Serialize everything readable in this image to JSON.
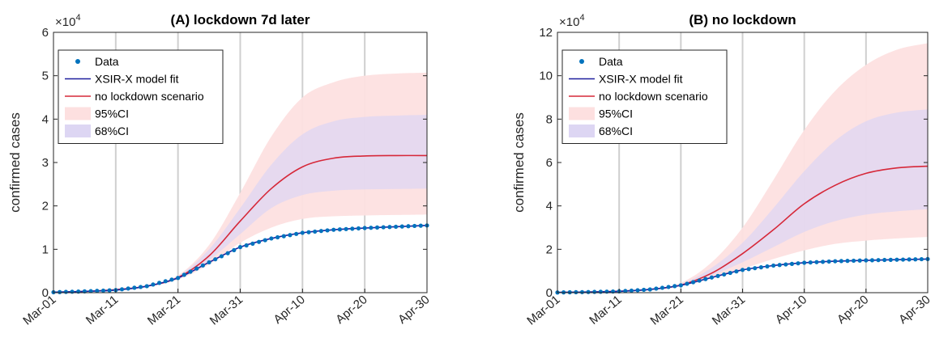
{
  "chart_data": [
    {
      "type": "line",
      "title": "(A) lockdown 7d later",
      "ylabel": "confirmed cases",
      "xlabel": "",
      "exponent_label": "×10",
      "exponent_power": "4",
      "ylim": [
        0,
        60000
      ],
      "yticks": [
        0,
        10000,
        20000,
        30000,
        40000,
        50000,
        60000
      ],
      "ytick_labels": [
        "0",
        "1",
        "2",
        "3",
        "4",
        "5",
        "6"
      ],
      "xlim": [
        "2020-03-01",
        "2020-04-30"
      ],
      "xticks": [
        "2020-03-01",
        "2020-03-11",
        "2020-03-21",
        "2020-03-31",
        "2020-04-10",
        "2020-04-20",
        "2020-04-30"
      ],
      "xtick_labels": [
        "Mar-01",
        "Mar-11",
        "Mar-21",
        "Mar-31",
        "Apr-10",
        "Apr-20",
        "Apr-30"
      ],
      "grid": "vertical",
      "legend_position": "top-left",
      "legend": [
        "Data",
        "XSIR-X model fit",
        "no lockdown scenario",
        "95%CI",
        "68%CI"
      ],
      "colors": {
        "data": "#0072BD",
        "fit": "#1f1f9e",
        "scenario": "#d62839",
        "ci95": "#fde0e0",
        "ci68": "#ddd6f3"
      },
      "x": [
        "2020-03-01",
        "2020-03-06",
        "2020-03-11",
        "2020-03-16",
        "2020-03-21",
        "2020-03-26",
        "2020-03-31",
        "2020-04-05",
        "2020-04-10",
        "2020-04-15",
        "2020-04-20",
        "2020-04-25",
        "2020-04-30"
      ],
      "series": [
        {
          "name": "Data",
          "values": [
            100,
            300,
            600,
            1500,
            3400,
            7000,
            10500,
            12500,
            13800,
            14500,
            14900,
            15200,
            15500
          ]
        },
        {
          "name": "XSIR-X model fit",
          "values": [
            100,
            300,
            600,
            1500,
            3400,
            7000,
            10500,
            12500,
            13800,
            14500,
            14900,
            15200,
            15500
          ]
        },
        {
          "name": "no lockdown scenario",
          "values": [
            100,
            300,
            700,
            1500,
            3500,
            8500,
            16500,
            24000,
            29000,
            31000,
            31500,
            31600,
            31600
          ]
        }
      ],
      "bands": [
        {
          "name": "95%CI",
          "lower": [
            100,
            300,
            600,
            1400,
            3000,
            6500,
            11500,
            15000,
            17000,
            17600,
            17800,
            17900,
            18000
          ],
          "upper": [
            100,
            300,
            800,
            1700,
            4000,
            11000,
            23000,
            36000,
            45000,
            48500,
            50000,
            50500,
            50700
          ]
        },
        {
          "name": "68%CI",
          "lower": [
            100,
            300,
            650,
            1450,
            3200,
            7500,
            13500,
            19500,
            22500,
            23500,
            23800,
            23900,
            24000
          ],
          "upper": [
            100,
            300,
            750,
            1600,
            3800,
            10000,
            19500,
            29500,
            36500,
            39500,
            40500,
            40800,
            41000
          ]
        }
      ]
    },
    {
      "type": "line",
      "title": "(B) no lockdown",
      "ylabel": "confirmed cases",
      "xlabel": "",
      "exponent_label": "×10",
      "exponent_power": "4",
      "ylim": [
        0,
        120000
      ],
      "yticks": [
        0,
        20000,
        40000,
        60000,
        80000,
        100000,
        120000
      ],
      "ytick_labels": [
        "0",
        "2",
        "4",
        "6",
        "8",
        "10",
        "12"
      ],
      "xlim": [
        "2020-03-01",
        "2020-04-30"
      ],
      "xticks": [
        "2020-03-01",
        "2020-03-11",
        "2020-03-21",
        "2020-03-31",
        "2020-04-10",
        "2020-04-20",
        "2020-04-30"
      ],
      "xtick_labels": [
        "Mar-01",
        "Mar-11",
        "Mar-21",
        "Mar-31",
        "Apr-10",
        "Apr-20",
        "Apr-30"
      ],
      "grid": "vertical",
      "legend_position": "top-left",
      "legend": [
        "Data",
        "XSIR-X model fit",
        "no lockdown scenario",
        "95%CI",
        "68%CI"
      ],
      "colors": {
        "data": "#0072BD",
        "fit": "#1f1f9e",
        "scenario": "#d62839",
        "ci95": "#fde0e0",
        "ci68": "#ddd6f3"
      },
      "x": [
        "2020-03-01",
        "2020-03-06",
        "2020-03-11",
        "2020-03-16",
        "2020-03-21",
        "2020-03-26",
        "2020-03-31",
        "2020-04-05",
        "2020-04-10",
        "2020-04-15",
        "2020-04-20",
        "2020-04-25",
        "2020-04-30"
      ],
      "series": [
        {
          "name": "Data",
          "values": [
            100,
            300,
            600,
            1500,
            3400,
            7000,
            10500,
            12500,
            13800,
            14500,
            14900,
            15200,
            15500
          ]
        },
        {
          "name": "XSIR-X model fit",
          "values": [
            100,
            300,
            600,
            1500,
            3400,
            7000,
            10500,
            12500,
            13800,
            14500,
            14900,
            15200,
            15500
          ]
        },
        {
          "name": "no lockdown scenario",
          "values": [
            100,
            300,
            700,
            1500,
            3500,
            9000,
            18000,
            29000,
            41000,
            49500,
            55000,
            57500,
            58300
          ]
        }
      ],
      "bands": [
        {
          "name": "95%CI",
          "lower": [
            100,
            300,
            600,
            1400,
            3000,
            6500,
            11000,
            15500,
            19500,
            22500,
            24000,
            25000,
            25700
          ]
        },
        {
          "name": "68%CI",
          "lower": [
            100,
            300,
            650,
            1450,
            3200,
            8000,
            14000,
            21000,
            28000,
            33000,
            36000,
            37500,
            38500
          ]
        }
      ],
      "band_uppers": [
        [
          100,
          300,
          800,
          1800,
          4500,
          14000,
          30000,
          52000,
          75000,
          93000,
          105000,
          112000,
          115000
        ],
        [
          100,
          300,
          750,
          1650,
          4000,
          11500,
          23000,
          39000,
          56000,
          70000,
          79000,
          83000,
          84500
        ]
      ]
    }
  ]
}
